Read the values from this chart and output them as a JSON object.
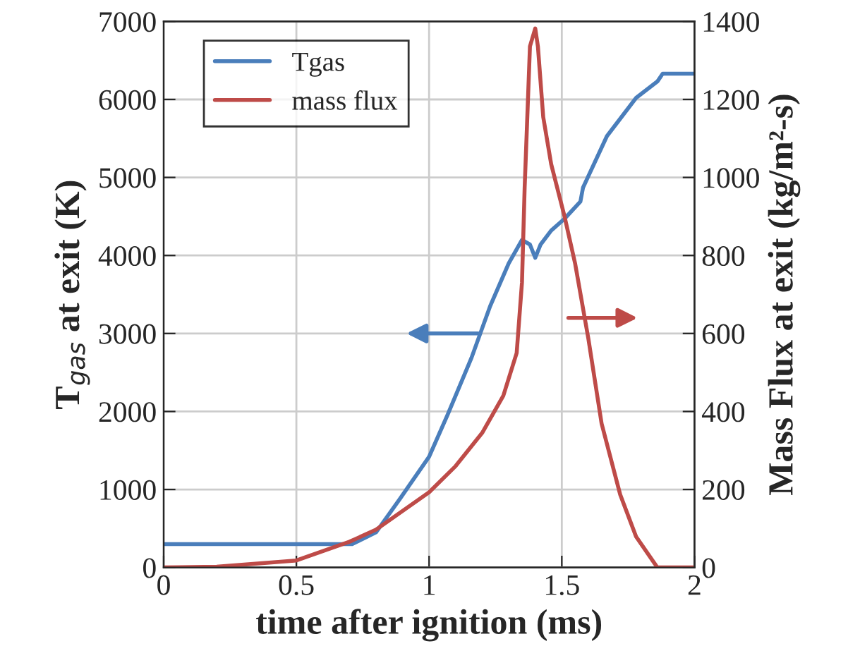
{
  "chart_data": {
    "type": "line",
    "xlabel": "time after ignition (ms)",
    "ylabel": "T$_{gas}$ at exit (K)",
    "y2label": "Mass Flux at exit (kg/m²-s)",
    "xlim": [
      0,
      2
    ],
    "xticks": [
      0,
      0.5,
      1,
      1.5,
      2
    ],
    "ylim": [
      0,
      7000
    ],
    "yticks": [
      0,
      1000,
      2000,
      3000,
      4000,
      5000,
      6000,
      7000
    ],
    "y2lim": [
      0,
      1400
    ],
    "y2ticks": [
      0,
      200,
      400,
      600,
      800,
      1000,
      1200,
      1400
    ],
    "grid": true,
    "legend": "top left",
    "line_style": "solid",
    "marker": "none",
    "series": [
      {
        "name": "Tgas",
        "color": "#4a7ebb",
        "x": [
          0,
          0.71,
          0.8,
          0.89,
          1.0,
          1.07,
          1.16,
          1.23,
          1.3,
          1.35,
          1.38,
          1.4,
          1.42,
          1.46,
          1.51,
          1.57,
          1.58,
          1.67,
          1.78,
          1.86,
          1.88,
          2.0
        ],
        "values": [
          300,
          300,
          450,
          880,
          1420,
          1960,
          2690,
          3350,
          3900,
          4200,
          4140,
          3970,
          4140,
          4320,
          4470,
          4690,
          4870,
          5530,
          6020,
          6230,
          6330,
          6330
        ]
      },
      {
        "name": "mass flux",
        "color": "#be4b48",
        "axis": "y2",
        "x": [
          0,
          0.2,
          0.5,
          0.7,
          0.8,
          1.0,
          1.1,
          1.2,
          1.28,
          1.33,
          1.35,
          1.36,
          1.38,
          1.4,
          1.41,
          1.43,
          1.46,
          1.51,
          1.55,
          1.6,
          1.65,
          1.72,
          1.78,
          1.86,
          2.0
        ],
        "values": [
          0,
          2,
          18,
          66,
          97,
          193,
          260,
          345,
          441,
          550,
          731,
          973,
          1336,
          1382,
          1336,
          1155,
          1034,
          901,
          780,
          587,
          369,
          187,
          79,
          0,
          0
        ]
      }
    ]
  }
}
